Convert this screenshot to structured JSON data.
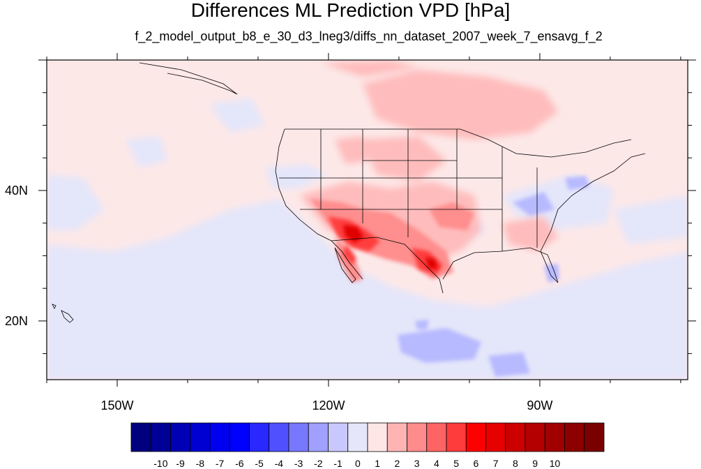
{
  "title": "Differences ML Prediction VPD [hPa]",
  "subtitle": "f_2_model_output_b8_e_30_d3_lneg3/diffs_nn_dataset_2007_week_7_ensavg_f_2",
  "map": {
    "projection": "cylindrical-equidistant",
    "lon_range": [
      -160,
      -69
    ],
    "lat_range": [
      11,
      60
    ],
    "lon_tick_labels": [
      "150W",
      "120W",
      "90W"
    ],
    "lat_tick_labels": [
      "40N",
      "20N"
    ],
    "background_color": "#fde8e8"
  },
  "colorbar": {
    "colors": [
      "#00007f",
      "#000096",
      "#0000b4",
      "#0000d2",
      "#0000ee",
      "#0000ff",
      "#2828ff",
      "#5050ff",
      "#7878ff",
      "#a0a0ff",
      "#c8c8ff",
      "#e6e6fa",
      "#ffe6e6",
      "#ffb4b4",
      "#ff8c8c",
      "#ff6464",
      "#ff3c3c",
      "#ff0000",
      "#e60000",
      "#cc0000",
      "#b40000",
      "#a00000",
      "#8c0000",
      "#7a0000"
    ],
    "labels": [
      "-10",
      "-9",
      "-8",
      "-7",
      "-6",
      "-5",
      "-4",
      "-3",
      "-2",
      "-1",
      "0",
      "1",
      "2",
      "3",
      "4",
      "5",
      "6",
      "7",
      "8",
      "9",
      "10"
    ]
  }
}
